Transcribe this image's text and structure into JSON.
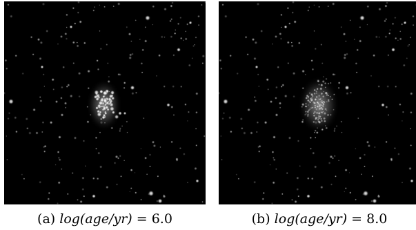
{
  "figure": {
    "panels": [
      {
        "id": "a",
        "tag": "(a)",
        "caption_expr": "log(age/yr)",
        "caption_eq": " = ",
        "caption_val": "6.0"
      },
      {
        "id": "b",
        "tag": "(b)",
        "caption_expr": "log(age/yr)",
        "caption_eq": " = ",
        "caption_val": "8.0"
      }
    ],
    "colors": {
      "background": "#000000",
      "stars": "#ffffff"
    }
  }
}
